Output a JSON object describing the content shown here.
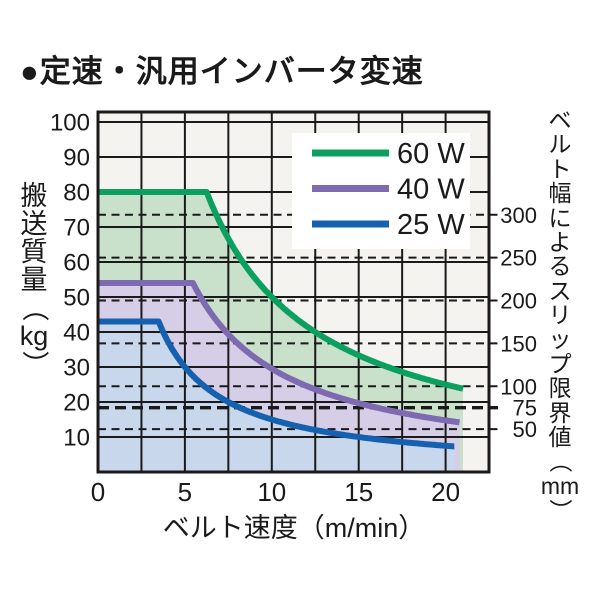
{
  "title": "●定速・汎用インバータ変速",
  "chart_data": {
    "type": "line",
    "title": "●定速・汎用インバータ変速",
    "plot_bg": "#f4f3f0",
    "grid_color": "#1a1a1a",
    "text_color": "#1a1a1a",
    "grid": true,
    "x_axis": {
      "label": "ベルト速度（m/min）",
      "ticks": [
        0,
        5,
        10,
        15,
        20
      ],
      "range": [
        0,
        22.5
      ],
      "grid_step": 2.5
    },
    "y_axis": {
      "label": "搬送質量（kg）",
      "ticks": [
        100,
        90,
        80,
        70,
        60,
        50,
        40,
        30,
        20,
        10
      ],
      "range": [
        0,
        103
      ],
      "grid_step": 10
    },
    "y2_axis": {
      "label": "ベルト幅によるスリップ限界値（mm）",
      "ticks": [
        300,
        250,
        200,
        150,
        100,
        75,
        50
      ],
      "kg_per_mm": 0.245,
      "bold_tick": 75,
      "style": "dashed-guide-lines"
    },
    "series": [
      {
        "name": "60 W",
        "color": "#0ba05f",
        "fill": "#c9e0ca",
        "flat_kg": 80,
        "k": 500,
        "v_end": 21.0,
        "points": [
          [
            0,
            80
          ],
          [
            6.25,
            80
          ],
          [
            7.5,
            66.7
          ],
          [
            10,
            50
          ],
          [
            12.5,
            40
          ],
          [
            15,
            33.3
          ],
          [
            17.5,
            28.6
          ],
          [
            20,
            25
          ],
          [
            21,
            23.8
          ]
        ]
      },
      {
        "name": "40 W",
        "color": "#7d6ab0",
        "fill": "#d6cee7",
        "flat_kg": 54,
        "k": 295,
        "v_end": 20.8,
        "points": [
          [
            0,
            54
          ],
          [
            5.46,
            54
          ],
          [
            7.5,
            39.3
          ],
          [
            10,
            29.5
          ],
          [
            12.5,
            23.6
          ],
          [
            15,
            19.7
          ],
          [
            17.5,
            16.9
          ],
          [
            20,
            14.8
          ],
          [
            20.8,
            14.2
          ]
        ]
      },
      {
        "name": "25 W",
        "color": "#1661af",
        "fill": "#c8d7ec",
        "flat_kg": 43,
        "k": 150,
        "v_end": 20.5,
        "points": [
          [
            0,
            43
          ],
          [
            3.49,
            43
          ],
          [
            7.5,
            20
          ],
          [
            10,
            15
          ],
          [
            12.5,
            12
          ],
          [
            15,
            10
          ],
          [
            17.5,
            8.6
          ],
          [
            20,
            7.5
          ],
          [
            20.5,
            7.3
          ]
        ]
      }
    ],
    "legend": {
      "position": "top-right",
      "items": [
        "60 W",
        "40 W",
        "25 W"
      ]
    }
  },
  "layout_note": "power-rating load curves, mass vs belt speed"
}
